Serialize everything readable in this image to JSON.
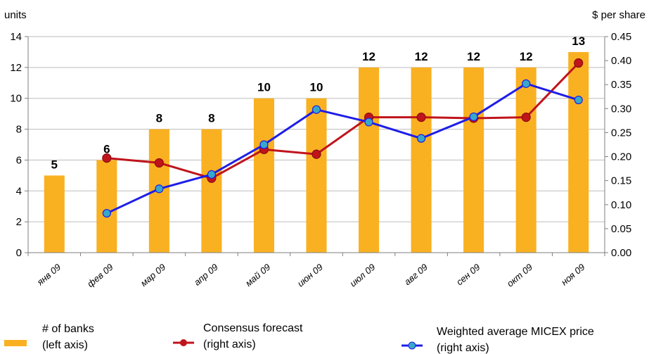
{
  "chart_data": {
    "type": "bar+line",
    "categories": [
      "янв 09",
      "фев 09",
      "мар 09",
      "апр 09",
      "май 09",
      "июн 09",
      "июл 09",
      "авг 09",
      "сен 09",
      "окт 09",
      "ноя 09"
    ],
    "left_axis": {
      "unit_label": "units",
      "ylim": [
        0,
        14
      ],
      "ticks": [
        0,
        2,
        4,
        6,
        8,
        10,
        12,
        14
      ]
    },
    "right_axis": {
      "unit_label": "$ per share",
      "ylim": [
        0,
        0.45
      ],
      "ticks": [
        "0.00",
        "0.05",
        "0.10",
        "0.15",
        "0.20",
        "0.25",
        "0.30",
        "0.35",
        "0.40",
        "0.45"
      ]
    },
    "bars": {
      "name_lines": [
        "# of banks",
        "(left axis)"
      ],
      "axis": "left",
      "color": "#F9B122",
      "values": [
        5,
        6,
        8,
        8,
        10,
        10,
        12,
        12,
        12,
        12,
        13
      ],
      "labels": [
        "5",
        "6",
        "8",
        "8",
        "10",
        "10",
        "12",
        "12",
        "12",
        "12",
        "13"
      ]
    },
    "series": [
      {
        "name_lines": [
          "Consensus forecast",
          "(right axis)"
        ],
        "axis": "right",
        "color": "#C0141B",
        "marker_color": "#C0141B",
        "values": [
          null,
          0.197,
          0.187,
          0.155,
          0.215,
          0.205,
          0.282,
          0.282,
          0.28,
          0.282,
          0.395
        ]
      },
      {
        "name_lines": [
          "Weighted average MICEX price",
          "(right axis)"
        ],
        "axis": "right",
        "color": "#1E1EE8",
        "marker_color": "#38A8C8",
        "values": [
          null,
          0.082,
          0.133,
          0.163,
          0.225,
          0.298,
          0.272,
          0.238,
          0.283,
          0.352,
          0.318
        ]
      }
    ],
    "grid": "horizontal",
    "legend": "bottom"
  }
}
